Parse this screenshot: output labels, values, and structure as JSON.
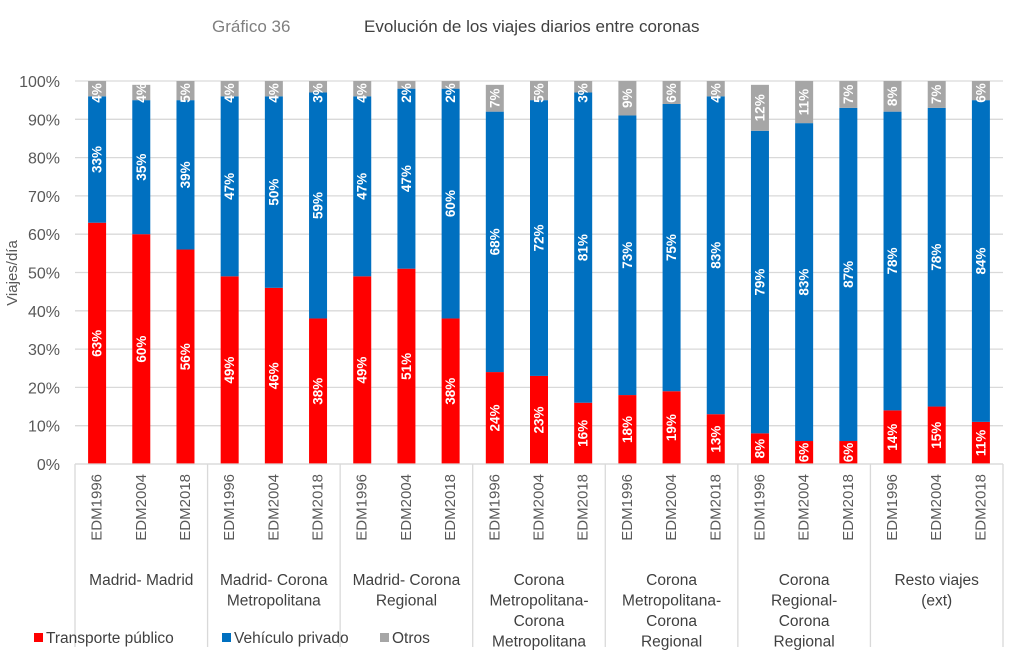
{
  "header": {
    "chart_number": "Gráfico 36",
    "title": "Evolución de los viajes diarios entre coronas"
  },
  "colors": {
    "transporte_publico": "#ff0000",
    "vehiculo_privado": "#0070c0",
    "otros": "#a6a6a6",
    "gridline": "#d9d9d9",
    "label_text": "#ffffff"
  },
  "chart_data": {
    "type": "bar",
    "stacked": "percent",
    "title": "Evolución de los viajes diarios entre coronas",
    "subtitle": "Gráfico 36",
    "xlabel": "",
    "ylabel": "Viajes/día",
    "ylim": [
      0,
      100
    ],
    "yticks": [
      "0%",
      "10%",
      "20%",
      "30%",
      "40%",
      "50%",
      "60%",
      "70%",
      "80%",
      "90%",
      "100%"
    ],
    "grid": true,
    "legend_position": "bottom-left",
    "groups": [
      {
        "label": [
          "Madrid- Madrid"
        ],
        "categories": [
          "EDM1996",
          "EDM2004",
          "EDM2018"
        ]
      },
      {
        "label": [
          "Madrid- Corona",
          "Metropolitana"
        ],
        "categories": [
          "EDM1996",
          "EDM2004",
          "EDM2018"
        ]
      },
      {
        "label": [
          "Madrid- Corona",
          "Regional"
        ],
        "categories": [
          "EDM1996",
          "EDM2004",
          "EDM2018"
        ]
      },
      {
        "label": [
          "Corona",
          "Metropolitana-",
          "Corona",
          "Metropolitana"
        ],
        "categories": [
          "EDM1996",
          "EDM2004",
          "EDM2018"
        ]
      },
      {
        "label": [
          "Corona",
          "Metropolitana-",
          "Corona",
          "Regional"
        ],
        "categories": [
          "EDM1996",
          "EDM2004",
          "EDM2018"
        ]
      },
      {
        "label": [
          "Corona",
          "Regional-",
          "Corona",
          "Regional"
        ],
        "categories": [
          "EDM1996",
          "EDM2004",
          "EDM2018"
        ]
      },
      {
        "label": [
          "Resto viajes",
          "(ext)"
        ],
        "categories": [
          "EDM1996",
          "EDM2004",
          "EDM2018"
        ]
      }
    ],
    "series": [
      {
        "name": "Transporte público",
        "key": "transporte_publico",
        "values": [
          63,
          60,
          56,
          49,
          46,
          38,
          49,
          51,
          38,
          24,
          23,
          16,
          18,
          19,
          13,
          8,
          6,
          6,
          14,
          15,
          11
        ]
      },
      {
        "name": "Vehículo privado",
        "key": "vehiculo_privado",
        "values": [
          33,
          35,
          39,
          47,
          50,
          59,
          47,
          47,
          60,
          68,
          72,
          81,
          73,
          75,
          83,
          79,
          83,
          87,
          78,
          78,
          84
        ]
      },
      {
        "name": "Otros",
        "key": "otros",
        "values": [
          4,
          4,
          5,
          4,
          4,
          3,
          4,
          2,
          2,
          7,
          5,
          3,
          9,
          6,
          4,
          12,
          11,
          7,
          8,
          7,
          6
        ]
      }
    ]
  }
}
